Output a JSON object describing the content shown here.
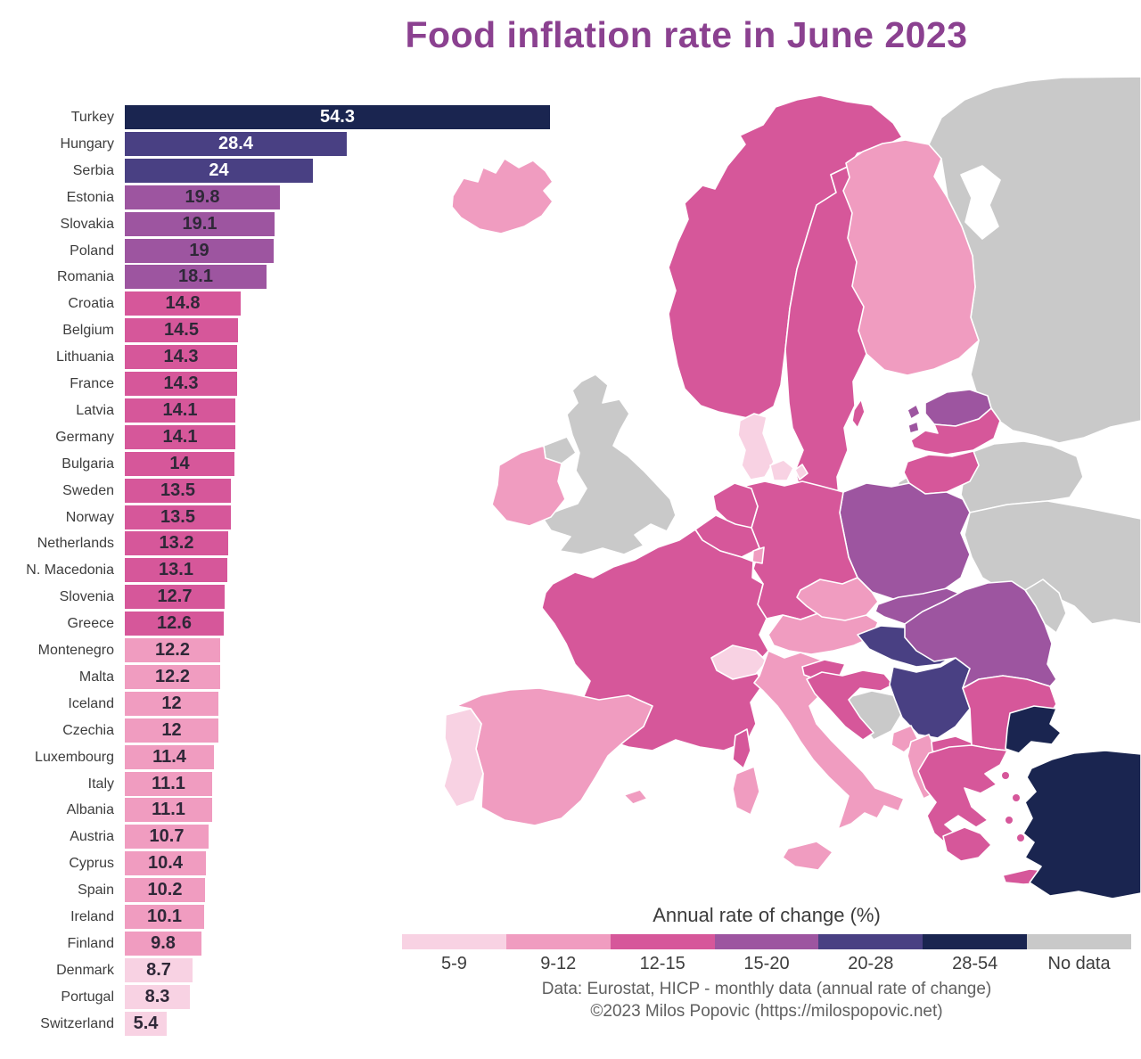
{
  "title": "Food inflation rate in June 2023",
  "chart_data": {
    "type": "bar",
    "orientation": "horizontal",
    "title": "Food inflation rate in June 2023",
    "xlabel": "",
    "ylabel": "",
    "xlim": [
      0,
      54.3
    ],
    "value_label_position": "inside-center",
    "categories": [
      "Turkey",
      "Hungary",
      "Serbia",
      "Estonia",
      "Slovakia",
      "Poland",
      "Romania",
      "Croatia",
      "Belgium",
      "Lithuania",
      "France",
      "Latvia",
      "Germany",
      "Bulgaria",
      "Sweden",
      "Norway",
      "Netherlands",
      "N. Macedonia",
      "Slovenia",
      "Greece",
      "Montenegro",
      "Malta",
      "Iceland",
      "Czechia",
      "Luxembourg",
      "Italy",
      "Albania",
      "Austria",
      "Cyprus",
      "Spain",
      "Ireland",
      "Finland",
      "Denmark",
      "Portugal",
      "Switzerland"
    ],
    "values": [
      54.3,
      28.4,
      24,
      19.8,
      19.1,
      19,
      18.1,
      14.8,
      14.5,
      14.3,
      14.3,
      14.1,
      14.1,
      14,
      13.5,
      13.5,
      13.2,
      13.1,
      12.7,
      12.6,
      12.2,
      12.2,
      12,
      12,
      11.4,
      11.1,
      11.1,
      10.7,
      10.4,
      10.2,
      10.1,
      9.8,
      8.7,
      8.3,
      5.4
    ],
    "bins": [
      "28-54",
      "20-28",
      "20-28",
      "15-20",
      "15-20",
      "15-20",
      "15-20",
      "12-15",
      "12-15",
      "12-15",
      "12-15",
      "12-15",
      "12-15",
      "12-15",
      "12-15",
      "12-15",
      "12-15",
      "12-15",
      "12-15",
      "12-15",
      "9-12",
      "9-12",
      "9-12",
      "9-12",
      "9-12",
      "9-12",
      "9-12",
      "9-12",
      "9-12",
      "9-12",
      "9-12",
      "9-12",
      "5-9",
      "5-9",
      "5-9"
    ]
  },
  "legend": {
    "title": "Annual rate of change (%)",
    "bins": [
      {
        "label": "5-9",
        "color": "#F8D2E3"
      },
      {
        "label": "9-12",
        "color": "#F09CC0"
      },
      {
        "label": "12-15",
        "color": "#D6579A"
      },
      {
        "label": "15-20",
        "color": "#9D55A0"
      },
      {
        "label": "20-28",
        "color": "#494083"
      },
      {
        "label": "28-54",
        "color": "#1A2550"
      },
      {
        "label": "No data",
        "color": "#C9C9C9"
      }
    ]
  },
  "attribution": {
    "line1": "Data: Eurostat, HICP - monthly data (annual rate of change)",
    "line2": "©2023 Milos Popovic (https://milospopovic.net)"
  },
  "map": {
    "countries": {
      "iceland": "9-12",
      "norway": "12-15",
      "sweden": "12-15",
      "finland": "9-12",
      "denmark": "5-9",
      "estonia": "15-20",
      "latvia": "12-15",
      "lithuania": "12-15",
      "kaliningrad": "No data",
      "russia": "No data",
      "belarus": "No data",
      "ukraine": "No data",
      "moldova": "No data",
      "poland": "15-20",
      "germany": "12-15",
      "netherlands": "12-15",
      "belgium": "12-15",
      "luxembourg": "9-12",
      "france": "12-15",
      "uk": "No data",
      "ireland": "9-12",
      "spain": "9-12",
      "portugal": "5-9",
      "switzerland": "5-9",
      "italy": "9-12",
      "austria": "9-12",
      "czechia": "9-12",
      "slovakia": "15-20",
      "hungary": "20-28",
      "slovenia": "12-15",
      "croatia": "12-15",
      "bosnia": "No data",
      "serbia": "20-28",
      "montenegro": "9-12",
      "albania": "9-12",
      "north_macedonia": "12-15",
      "greece": "12-15",
      "bulgaria": "12-15",
      "romania": "15-20",
      "turkey": "28-54"
    }
  },
  "colors": {
    "title_text": "#8B4190",
    "country_label_text": "#3D3D3D",
    "value_text_dark": "#2F2838",
    "value_text_light": "#FFFFFF",
    "map_border": "#FFFFFF",
    "attribution_text": "#606060"
  }
}
